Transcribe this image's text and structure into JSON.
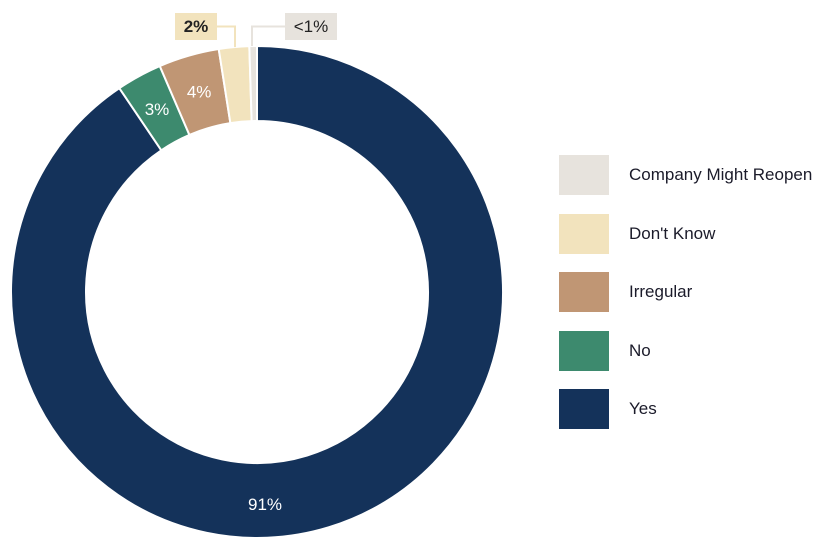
{
  "chart_data": {
    "type": "pie",
    "style": "donut",
    "slices": [
      {
        "label": "Yes",
        "value": 91,
        "display": "91%",
        "color": "#14325a"
      },
      {
        "label": "No",
        "value": 3,
        "display": "3%",
        "color": "#3d8a6e"
      },
      {
        "label": "Irregular",
        "value": 4,
        "display": "4%",
        "color": "#c09674"
      },
      {
        "label": "Don't Know",
        "value": 2,
        "display": "2%",
        "color": "#f2e3bd"
      },
      {
        "label": "Company Might Reopen",
        "value": 0.5,
        "display": "<1%",
        "color": "#e7e3dd"
      }
    ],
    "legend_placement": "right",
    "legend": [
      {
        "label": "Company Might Reopen",
        "color": "#e7e3dd"
      },
      {
        "label": "Don't Know",
        "color": "#f2e3bd"
      },
      {
        "label": "Irregular",
        "color": "#c09674"
      },
      {
        "label": "No",
        "color": "#3d8a6e"
      },
      {
        "label": "Yes",
        "color": "#14325a"
      }
    ]
  }
}
